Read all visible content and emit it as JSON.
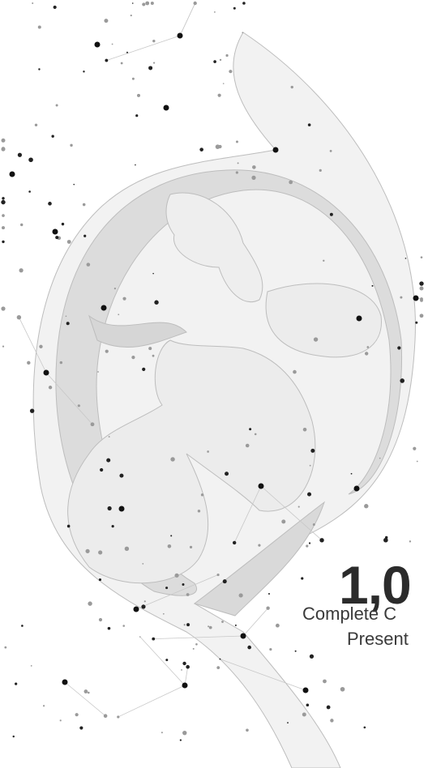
{
  "headline": {
    "number": "1,0",
    "line1": "Complete C",
    "line2": "Present"
  }
}
